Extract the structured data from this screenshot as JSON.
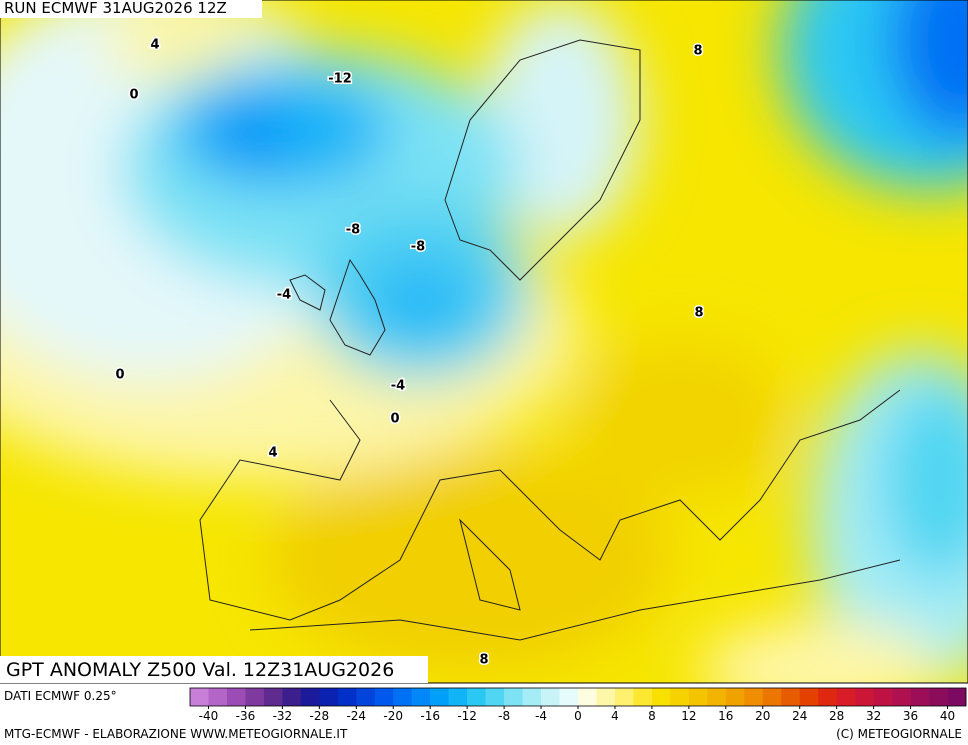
{
  "header": {
    "run": "RUN ECMWF 31AUG2026 12Z"
  },
  "map": {
    "title": "GPT ANOMALY Z500 Val. 12Z31AUG2026",
    "contour_labels": [
      "4",
      "0",
      "-12",
      "8",
      "-8",
      "-8",
      "-4",
      "8",
      "0",
      "-4",
      "0",
      "4",
      "8"
    ]
  },
  "legend": {
    "source": "DATI ECMWF 0.25°",
    "range": [
      -42,
      42
    ],
    "ticks": [
      -40,
      -36,
      -32,
      -28,
      -24,
      -20,
      -16,
      -12,
      -8,
      -4,
      0,
      4,
      8,
      12,
      16,
      20,
      24,
      28,
      32,
      36,
      40
    ],
    "colors": [
      "#c87fd8",
      "#b366c8",
      "#9c4db5",
      "#7f3aa0",
      "#5f2b8f",
      "#3b1f8c",
      "#1b1a9a",
      "#0b22b0",
      "#0030c8",
      "#0044dc",
      "#0058ec",
      "#0070f4",
      "#0088f8",
      "#00a0fa",
      "#12b4f8",
      "#2cc8f4",
      "#50d6f2",
      "#7ce2f4",
      "#a4ecf6",
      "#c8f4f8",
      "#e6fbfb",
      "#fffde0",
      "#fff7a8",
      "#fff070",
      "#fce830",
      "#f8e000",
      "#f6d200",
      "#f4c400",
      "#f2b400",
      "#f0a200",
      "#ee8e00",
      "#ec7600",
      "#e85c00",
      "#e44000",
      "#e02810",
      "#d81c28",
      "#cc1638",
      "#be1244",
      "#ae1050",
      "#9c0e58",
      "#8c0c5c",
      "#7c0a60"
    ]
  },
  "footer": {
    "credit": "MTG-ECMWF - ELABORAZIONE WWW.METEOGIORNALE.IT",
    "copyright": "(C) METEOGIORNALE"
  }
}
